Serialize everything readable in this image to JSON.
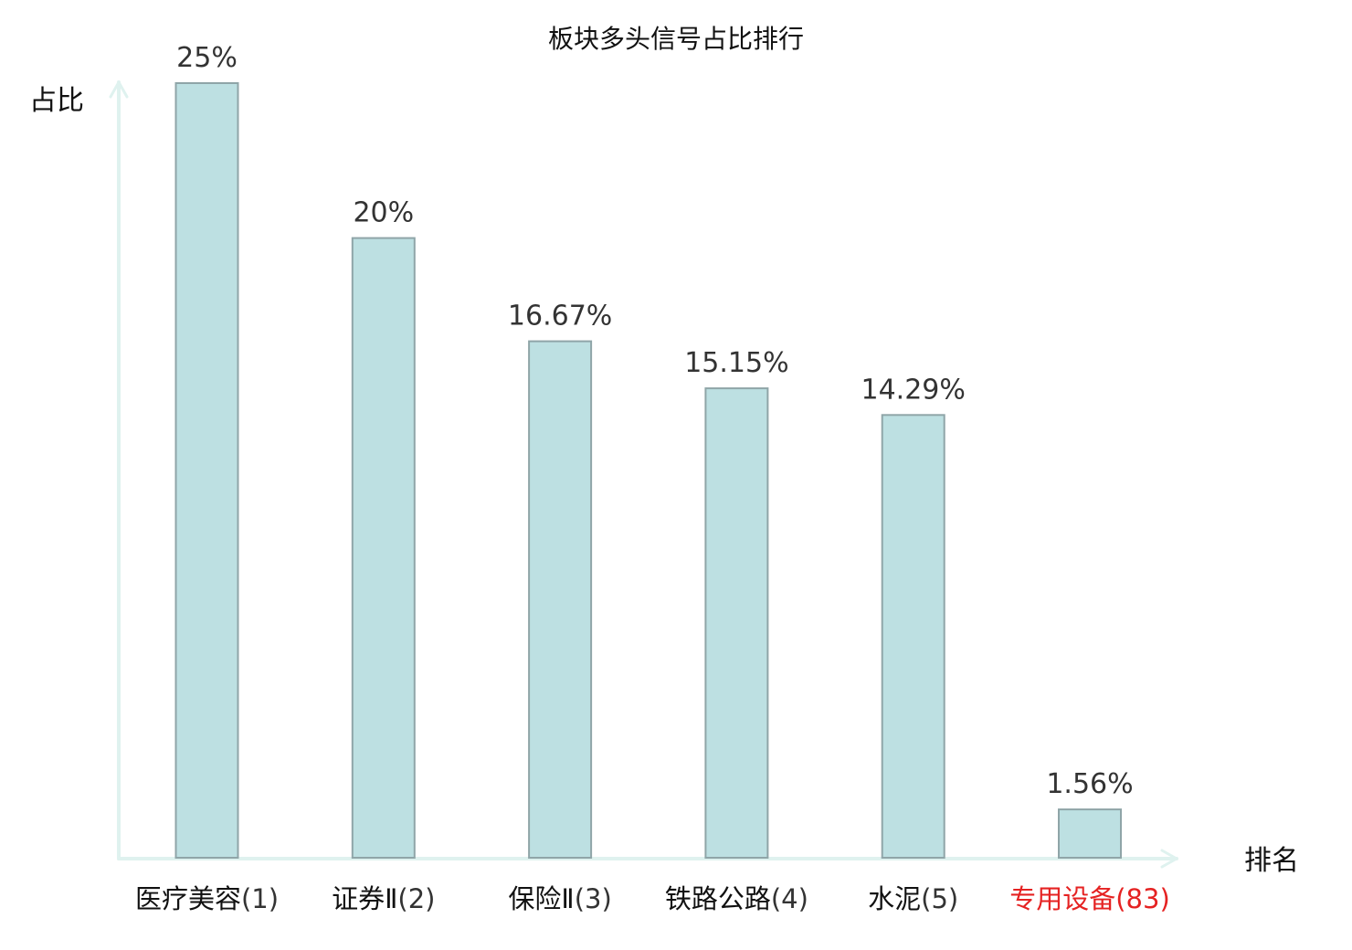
{
  "colors": {
    "bar_fill": "#bde0e2",
    "bar_stroke": "#8fa5a8",
    "axis": "#dff2ef",
    "label_default": "#111111",
    "label_highlight": "#e52222",
    "value_text": "#333333"
  },
  "chart_data": {
    "type": "bar",
    "title": "板块多头信号占比排行",
    "ylabel": "占比",
    "xlabel": "排名",
    "ylim": [
      0,
      25
    ],
    "grid": false,
    "legend": "none",
    "categories": [
      {
        "name": "医疗美容",
        "rank": "(1)",
        "highlight": false
      },
      {
        "name": "证券Ⅱ",
        "rank": "(2)",
        "highlight": false
      },
      {
        "name": "保险Ⅱ",
        "rank": "(3)",
        "highlight": false
      },
      {
        "name": "铁路公路",
        "rank": "(4)",
        "highlight": false
      },
      {
        "name": "水泥",
        "rank": "(5)",
        "highlight": false
      },
      {
        "name": "专用设备",
        "rank": "(83)",
        "highlight": true
      }
    ],
    "values": [
      25,
      20,
      16.67,
      15.15,
      14.29,
      1.56
    ],
    "value_labels": [
      "25%",
      "20%",
      "16.67%",
      "15.15%",
      "14.29%",
      "1.56%"
    ]
  }
}
